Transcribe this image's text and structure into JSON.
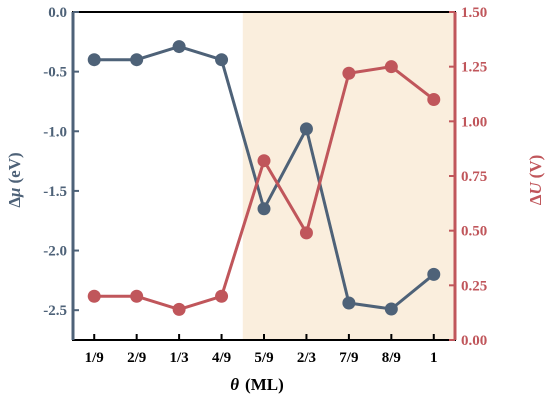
{
  "chart_data": {
    "type": "line",
    "categories": [
      "1/9",
      "2/9",
      "1/3",
      "4/9",
      "5/9",
      "2/3",
      "7/9",
      "8/9",
      "1"
    ],
    "xlabel_italic": "θ",
    "xlabel_unit": "(ML)",
    "left_axis": {
      "label_delta": "Δ",
      "label_symbol": "μ",
      "label_unit": "(eV)",
      "ylim": [
        -2.75,
        0.0
      ],
      "ticks": [
        "0.0",
        "-0.5",
        "-1.0",
        "-1.5",
        "-2.0",
        "-2.5"
      ],
      "tick_values": [
        0.0,
        -0.5,
        -1.0,
        -1.5,
        -2.0,
        -2.5
      ],
      "color": "#4e6278"
    },
    "right_axis": {
      "label_delta": "Δ",
      "label_symbol": "U",
      "label_unit": "(V)",
      "ylim": [
        0.0,
        1.5
      ],
      "ticks": [
        "1.50",
        "1.25",
        "1.00",
        "0.75",
        "0.50",
        "0.25",
        "0.00"
      ],
      "tick_values": [
        1.5,
        1.25,
        1.0,
        0.75,
        0.5,
        0.25,
        0.0
      ],
      "color": "#c0565b"
    },
    "series": [
      {
        "axis": "left",
        "color": "#4e6278",
        "values": [
          -0.4,
          -0.4,
          -0.29,
          -0.4,
          -1.65,
          -0.98,
          -2.44,
          -2.49,
          -2.2
        ]
      },
      {
        "axis": "right",
        "color": "#c0565b",
        "values": [
          0.2,
          0.2,
          0.14,
          0.2,
          0.82,
          0.49,
          1.22,
          1.25,
          1.1
        ]
      }
    ],
    "shaded_region": {
      "from_category": "5/9",
      "to_category": "1",
      "color": "#faeedd"
    },
    "grid": false
  }
}
